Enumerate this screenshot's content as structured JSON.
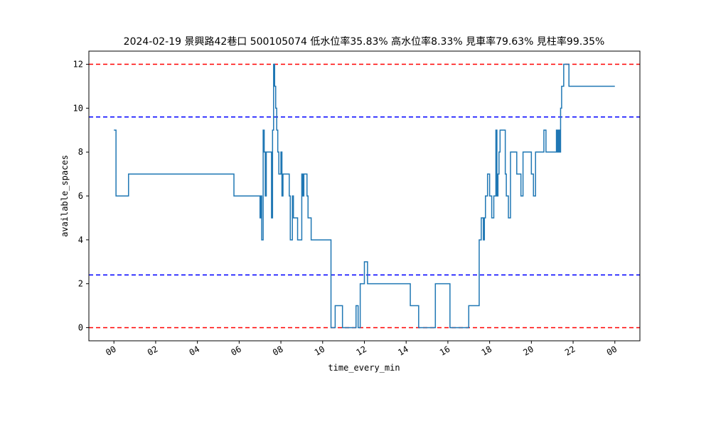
{
  "chart_data": {
    "type": "line",
    "title": "2024-02-19 景興路42巷口 500105074 低水位率35.83% 高水位率8.33% 見車率79.63% 見柱率99.35%",
    "xlabel": "time_every_min",
    "ylabel": "available_spaces",
    "x_tick_labels": [
      "00",
      "02",
      "04",
      "06",
      "08",
      "10",
      "12",
      "14",
      "16",
      "18",
      "20",
      "22",
      "00"
    ],
    "x_ticks_hours": [
      0,
      2,
      4,
      6,
      8,
      10,
      12,
      14,
      16,
      18,
      20,
      22,
      24
    ],
    "y_ticks": [
      0,
      2,
      4,
      6,
      8,
      10,
      12
    ],
    "y_tick_labels": [
      "0",
      "2",
      "4",
      "6",
      "8",
      "10",
      "12"
    ],
    "xlim_hours": [
      -1.2,
      25.2
    ],
    "ylim": [
      -0.6,
      12.6
    ],
    "grid": false,
    "reference_lines": [
      {
        "y": 12,
        "color": "#ff0000",
        "style": "dashed"
      },
      {
        "y": 9.6,
        "color": "#0000ff",
        "style": "dashed"
      },
      {
        "y": 2.4,
        "color": "#0000ff",
        "style": "dashed"
      },
      {
        "y": 0,
        "color": "#ff0000",
        "style": "dashed"
      }
    ],
    "series": [
      {
        "color": "#1f77b4",
        "step": true,
        "x_hours": [
          0,
          0.1,
          0.7,
          5.75,
          7.0,
          7.05,
          7.08,
          7.15,
          7.2,
          7.25,
          7.3,
          7.55,
          7.6,
          7.65,
          7.7,
          7.75,
          7.8,
          7.85,
          7.9,
          8.0,
          8.05,
          8.1,
          8.4,
          8.45,
          8.55,
          8.6,
          8.8,
          9.0,
          9.05,
          9.1,
          9.25,
          9.3,
          9.45,
          10.4,
          10.6,
          10.95,
          11.6,
          11.7,
          11.8,
          12.0,
          12.15,
          14.2,
          14.6,
          15.4,
          16.1,
          17.0,
          17.5,
          17.6,
          17.7,
          17.75,
          17.8,
          17.9,
          18.0,
          18.1,
          18.2,
          18.3,
          18.35,
          18.4,
          18.45,
          18.5,
          18.75,
          18.8,
          18.9,
          19.0,
          19.3,
          19.5,
          19.6,
          20.0,
          20.1,
          20.2,
          20.6,
          20.7,
          21.2,
          21.25,
          21.3,
          21.35,
          21.4,
          21.45,
          21.55,
          21.8,
          21.95,
          22.0,
          22.1,
          22.45,
          22.55,
          22.65,
          22.8,
          22.85,
          23.1,
          23.3,
          24.0
        ],
        "values": [
          9,
          6,
          7,
          6,
          5,
          6,
          4,
          9,
          8,
          6,
          8,
          5,
          9,
          12,
          11,
          10,
          9,
          8,
          7,
          8,
          6,
          7,
          6,
          4,
          6,
          5,
          4,
          7,
          6,
          7,
          6,
          5,
          4,
          0,
          1,
          0,
          1,
          0,
          2,
          3,
          2,
          1,
          0,
          2,
          0,
          1,
          4,
          5,
          4,
          5,
          6,
          7,
          6,
          5,
          6,
          9,
          6,
          7,
          8,
          9,
          7,
          6,
          5,
          8,
          7,
          6,
          8,
          7,
          6,
          8,
          9,
          8,
          9,
          8,
          9,
          8,
          10,
          11,
          12,
          11,
          11,
          11,
          11,
          11,
          11,
          11,
          11,
          11,
          11,
          11,
          11
        ]
      }
    ]
  }
}
